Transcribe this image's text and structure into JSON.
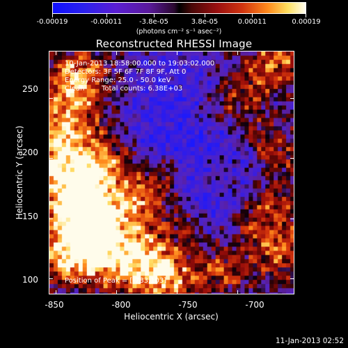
{
  "colorbar": {
    "tick_labels": [
      "-0.00019",
      "-0.00011",
      "-3.8e-05",
      "3.8e-05",
      "0.00011",
      "0.00019"
    ],
    "units_label": "(photons cm⁻² s⁻¹ asec⁻²)"
  },
  "chart_data": {
    "type": "heatmap",
    "title": "Reconstructed RHESSI Image",
    "xlabel": "Heliocentric X (arcsec)",
    "ylabel": "Heliocentric Y (arcsec)",
    "xticks": [
      "-850",
      "-800",
      "-750",
      "-700"
    ],
    "yticks": [
      "100",
      "150",
      "200",
      "250"
    ],
    "xlim": [
      -856,
      -653
    ],
    "ylim": [
      87,
      289
    ],
    "color_range": [
      -0.00019,
      0.00019
    ],
    "peak": [
      -783,
      103
    ],
    "annotations": {
      "time_range": "10-Jan-2013 18:58:00.000 to 19:03:02.000",
      "detectors": "Detectors: 3F 5F 6F 7F 8F 9F, Att 0",
      "energy": "Energy Range: 25.0 - 50.0 keV",
      "method": "Clean",
      "total_counts": "Total counts: 6.38E+03",
      "peak_position": "Position of Peak = [-783,103]"
    }
  },
  "footer": {
    "timestamp": "11-Jan-2013 02:52"
  }
}
